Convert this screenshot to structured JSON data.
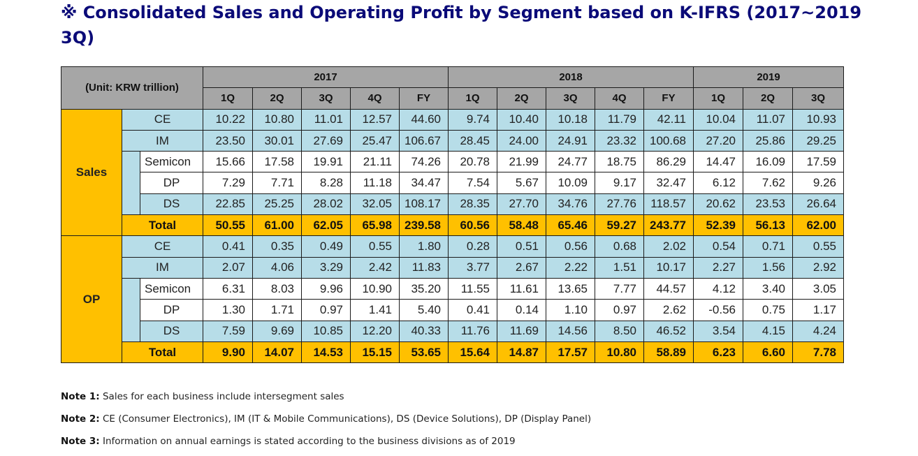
{
  "title": "※ Consolidated Sales and Operating Profit by Segment based on K-IFRS (2017~2019 3Q)",
  "table": {
    "unit_label": "(Unit: KRW trillion)",
    "years": [
      {
        "label": "2017",
        "periods": [
          "1Q",
          "2Q",
          "3Q",
          "4Q",
          "FY"
        ]
      },
      {
        "label": "2018",
        "periods": [
          "1Q",
          "2Q",
          "3Q",
          "4Q",
          "FY"
        ]
      },
      {
        "label": "2019",
        "periods": [
          "1Q",
          "2Q",
          "3Q"
        ]
      }
    ],
    "sections": [
      {
        "label": "Sales",
        "rows": [
          {
            "label": "CE",
            "style": "blue",
            "sub": false,
            "values": [
              "10.22",
              "10.80",
              "11.01",
              "12.57",
              "44.60",
              "9.74",
              "10.40",
              "10.18",
              "11.79",
              "42.11",
              "10.04",
              "11.07",
              "10.93"
            ]
          },
          {
            "label": "IM",
            "style": "blue",
            "sub": false,
            "values": [
              "23.50",
              "30.01",
              "27.69",
              "25.47",
              "106.67",
              "28.45",
              "24.00",
              "24.91",
              "23.32",
              "100.68",
              "27.20",
              "25.86",
              "29.25"
            ]
          },
          {
            "label": "Semicon",
            "style": "white",
            "sub": true,
            "values": [
              "15.66",
              "17.58",
              "19.91",
              "21.11",
              "74.26",
              "20.78",
              "21.99",
              "24.77",
              "18.75",
              "86.29",
              "14.47",
              "16.09",
              "17.59"
            ]
          },
          {
            "label": "DP",
            "style": "white",
            "sub": true,
            "values": [
              "7.29",
              "7.71",
              "8.28",
              "11.18",
              "34.47",
              "7.54",
              "5.67",
              "10.09",
              "9.17",
              "32.47",
              "6.12",
              "7.62",
              "9.26"
            ]
          },
          {
            "label": "DS",
            "style": "blue",
            "sub": true,
            "values": [
              "22.85",
              "25.25",
              "28.02",
              "32.05",
              "108.17",
              "28.35",
              "27.70",
              "34.76",
              "27.76",
              "118.57",
              "20.62",
              "23.53",
              "26.64"
            ]
          },
          {
            "label": "Total",
            "style": "total",
            "sub": false,
            "values": [
              "50.55",
              "61.00",
              "62.05",
              "65.98",
              "239.58",
              "60.56",
              "58.48",
              "65.46",
              "59.27",
              "243.77",
              "52.39",
              "56.13",
              "62.00"
            ]
          }
        ]
      },
      {
        "label": "OP",
        "rows": [
          {
            "label": "CE",
            "style": "blue",
            "sub": false,
            "values": [
              "0.41",
              "0.35",
              "0.49",
              "0.55",
              "1.80",
              "0.28",
              "0.51",
              "0.56",
              "0.68",
              "2.02",
              "0.54",
              "0.71",
              "0.55"
            ]
          },
          {
            "label": "IM",
            "style": "blue",
            "sub": false,
            "values": [
              "2.07",
              "4.06",
              "3.29",
              "2.42",
              "11.83",
              "3.77",
              "2.67",
              "2.22",
              "1.51",
              "10.17",
              "2.27",
              "1.56",
              "2.92"
            ]
          },
          {
            "label": "Semicon",
            "style": "white",
            "sub": true,
            "values": [
              "6.31",
              "8.03",
              "9.96",
              "10.90",
              "35.20",
              "11.55",
              "11.61",
              "13.65",
              "7.77",
              "44.57",
              "4.12",
              "3.40",
              "3.05"
            ]
          },
          {
            "label": "DP",
            "style": "white",
            "sub": true,
            "values": [
              "1.30",
              "1.71",
              "0.97",
              "1.41",
              "5.40",
              "0.41",
              "0.14",
              "1.10",
              "0.97",
              "2.62",
              "-0.56",
              "0.75",
              "1.17"
            ]
          },
          {
            "label": "DS",
            "style": "blue",
            "sub": true,
            "values": [
              "7.59",
              "9.69",
              "10.85",
              "12.20",
              "40.33",
              "11.76",
              "11.69",
              "14.56",
              "8.50",
              "46.52",
              "3.54",
              "4.15",
              "4.24"
            ]
          },
          {
            "label": "Total",
            "style": "total",
            "sub": false,
            "values": [
              "9.90",
              "14.07",
              "14.53",
              "15.15",
              "53.65",
              "15.64",
              "14.87",
              "17.57",
              "10.80",
              "58.89",
              "6.23",
              "6.60",
              "7.78"
            ]
          }
        ]
      }
    ]
  },
  "notes": [
    {
      "label": "Note 1:",
      "text": " Sales for each business include intersegment sales"
    },
    {
      "label": "Note 2:",
      "text": " CE (Consumer Electronics), IM (IT & Mobile Communications), DS (Device Solutions), DP (Display Panel)"
    },
    {
      "label": "Note 3:",
      "text": " Information on annual earnings is stated according to the business divisions as of 2019"
    }
  ],
  "colors": {
    "title": "#0b0b78",
    "header_gray": "#a6a6a6",
    "segment_yellow": "#ffc000",
    "row_blue": "#b7dde8",
    "row_white": "#ffffff"
  }
}
